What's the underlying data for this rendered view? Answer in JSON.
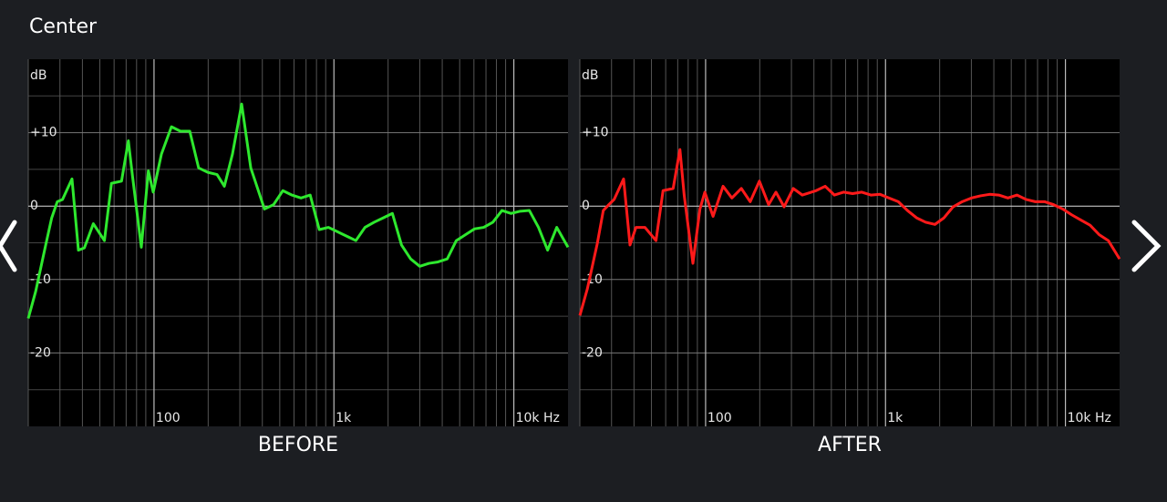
{
  "header": {
    "title": "Center"
  },
  "chart_data": [
    {
      "type": "line",
      "x_label": "BEFORE",
      "y_label": "dB",
      "color": "#2ee82e",
      "xscale": "log",
      "xlim": [
        20,
        20000
      ],
      "ylim": [
        -30,
        20
      ],
      "xticks": [
        {
          "value": 100,
          "label": "100"
        },
        {
          "value": 1000,
          "label": "1k"
        },
        {
          "value": 10000,
          "label": "10k Hz"
        }
      ],
      "xgrid": [
        20,
        30,
        40,
        50,
        60,
        70,
        80,
        90,
        200,
        300,
        400,
        500,
        600,
        700,
        800,
        900,
        2000,
        3000,
        4000,
        5000,
        6000,
        7000,
        8000,
        9000
      ],
      "yticks": [
        {
          "value": 10,
          "label": "+10"
        },
        0,
        -10,
        -20
      ],
      "ygrid": [
        15,
        5,
        -5,
        -15,
        -25
      ],
      "x": [
        20,
        22,
        25,
        27,
        29,
        31,
        35,
        38,
        41,
        46,
        53,
        58,
        66,
        72,
        76,
        85,
        93,
        99,
        110,
        125,
        140,
        158,
        177,
        199,
        224,
        246,
        273,
        307,
        345,
        411,
        462,
        520,
        584,
        656,
        738,
        829,
        932,
        1047,
        1178,
        1324,
        1488,
        1672,
        1880,
        2113,
        2375,
        2669,
        3000,
        3373,
        3791,
        4261,
        4789,
        5383,
        6050,
        6800,
        7643,
        8590,
        9655,
        10852,
        12197,
        13709,
        15408,
        17318,
        20000
      ],
      "values": [
        -15.3,
        -11.6,
        -5.3,
        -1.6,
        0.6,
        0.9,
        3.7,
        -6.0,
        -5.7,
        -2.4,
        -4.7,
        3.1,
        3.4,
        8.9,
        4.0,
        -5.6,
        4.8,
        1.9,
        7.1,
        10.8,
        10.2,
        10.2,
        5.2,
        4.6,
        4.3,
        2.7,
        7.1,
        13.9,
        5.2,
        -0.4,
        0.2,
        2.1,
        1.5,
        1.1,
        1.5,
        -3.2,
        -2.9,
        -3.5,
        -4.1,
        -4.7,
        -2.9,
        -2.2,
        -1.6,
        -1.0,
        -5.3,
        -7.2,
        -8.2,
        -7.8,
        -7.6,
        -7.2,
        -4.7,
        -3.9,
        -3.1,
        -2.9,
        -2.2,
        -0.6,
        -1.0,
        -0.7,
        -0.6,
        -2.9,
        -6.0,
        -2.9,
        -5.6
      ]
    },
    {
      "type": "line",
      "x_label": "AFTER",
      "y_label": "dB",
      "color": "#ff1a1a",
      "xscale": "log",
      "xlim": [
        20,
        20000
      ],
      "ylim": [
        -30,
        20
      ],
      "xticks": [
        {
          "value": 100,
          "label": "100"
        },
        {
          "value": 1000,
          "label": "1k"
        },
        {
          "value": 10000,
          "label": "10k Hz"
        }
      ],
      "xgrid": [
        20,
        30,
        40,
        50,
        60,
        70,
        80,
        90,
        200,
        300,
        400,
        500,
        600,
        700,
        800,
        900,
        2000,
        3000,
        4000,
        5000,
        6000,
        7000,
        8000,
        9000
      ],
      "yticks": [
        {
          "value": 10,
          "label": "+10"
        },
        0,
        -10,
        -20
      ],
      "ygrid": [
        15,
        5,
        -5,
        -15,
        -25
      ],
      "x": [
        20,
        22,
        25,
        27,
        29,
        31,
        35,
        38,
        41,
        46,
        53,
        58,
        66,
        72,
        76,
        85,
        93,
        99,
        110,
        125,
        140,
        158,
        177,
        199,
        224,
        246,
        273,
        307,
        345,
        411,
        462,
        520,
        584,
        656,
        738,
        829,
        932,
        1047,
        1178,
        1324,
        1488,
        1672,
        1880,
        2113,
        2375,
        2669,
        3000,
        3373,
        3791,
        4261,
        4789,
        5383,
        6050,
        6800,
        7643,
        8590,
        9655,
        10852,
        12197,
        13709,
        15408,
        17318,
        20000
      ],
      "values": [
        -14.9,
        -11.3,
        -5.1,
        -0.6,
        0.2,
        0.9,
        3.7,
        -5.3,
        -2.9,
        -2.9,
        -4.7,
        2.1,
        2.4,
        7.7,
        1.5,
        -7.8,
        -0.4,
        1.9,
        -1.4,
        2.7,
        1.1,
        2.4,
        0.6,
        3.4,
        0.2,
        1.9,
        -0.1,
        2.4,
        1.5,
        2.1,
        2.7,
        1.5,
        1.9,
        1.7,
        1.9,
        1.5,
        1.6,
        1.1,
        0.6,
        -0.6,
        -1.6,
        -2.2,
        -2.5,
        -1.6,
        -0.1,
        0.6,
        1.1,
        1.4,
        1.6,
        1.5,
        1.1,
        1.5,
        0.9,
        0.6,
        0.6,
        0.2,
        -0.4,
        -1.2,
        -1.9,
        -2.6,
        -3.9,
        -4.7,
        -7.2
      ]
    }
  ]
}
